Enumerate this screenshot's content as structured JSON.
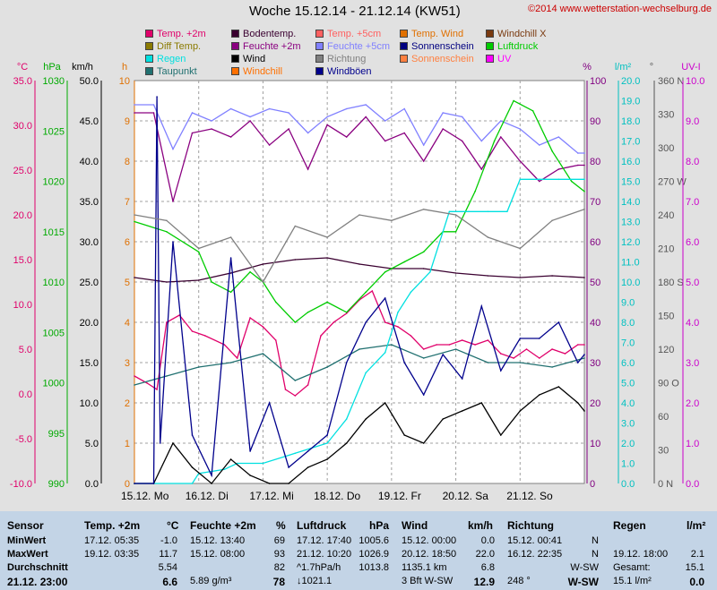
{
  "header": {
    "title": "Woche 15.12.14 - 21.12.14 (KW51)",
    "copyright": "©2014 www.wetterstation-wechselburg.de"
  },
  "legend": [
    {
      "label": "Temp. +2m",
      "color": "#e0006a"
    },
    {
      "label": "Bodentemp.",
      "color": "#3a0030"
    },
    {
      "label": "Temp. +5cm",
      "color": "#ff6060"
    },
    {
      "label": "Temp. Wind",
      "color": "#e07000"
    },
    {
      "label": "Windchill X",
      "color": "#7a3a10"
    },
    {
      "label": "Diff Temp.",
      "color": "#8a7a00"
    },
    {
      "label": "Feuchte +2m",
      "color": "#8a0080"
    },
    {
      "label": "Feuchte +5cm",
      "color": "#8080ff"
    },
    {
      "label": "Sonnenschein",
      "color": "#000080"
    },
    {
      "label": "Luftdruck",
      "color": "#00cc00"
    },
    {
      "label": "Regen",
      "color": "#00e0e0"
    },
    {
      "label": "Wind",
      "color": "#000000"
    },
    {
      "label": "Richtung",
      "color": "#808080"
    },
    {
      "label": "Sonnenschein",
      "color": "#ff8040"
    },
    {
      "label": "UV",
      "color": "#ff00ff"
    },
    {
      "label": "Taupunkt",
      "color": "#207070"
    },
    {
      "label": "Windchill",
      "color": "#ff7000"
    },
    {
      "label": "Windböen",
      "color": "#00008c"
    }
  ],
  "axes": {
    "temp": {
      "unit": "°C",
      "color": "#e0006a",
      "ticks": [
        "35.0",
        "30.0",
        "25.0",
        "20.0",
        "15.0",
        "10.0",
        "5.0",
        "0.0",
        "-5.0",
        "-10.0"
      ]
    },
    "pressure": {
      "unit": "hPa",
      "color": "#00aa00",
      "ticks": [
        "1030",
        "1025",
        "1020",
        "1015",
        "1010",
        "1005",
        "1000",
        "995",
        "990"
      ]
    },
    "wind": {
      "unit": "km/h",
      "color": "#000000",
      "ticks": [
        "50.0",
        "45.0",
        "40.0",
        "35.0",
        "30.0",
        "25.0",
        "20.0",
        "15.0",
        "10.0",
        "5.0",
        "0.0"
      ]
    },
    "sun": {
      "unit": "h",
      "color": "#e07000",
      "ticks": [
        "10",
        "9",
        "8",
        "7",
        "6",
        "5",
        "4",
        "3",
        "2",
        "1",
        "0"
      ]
    },
    "humidity": {
      "unit": "%",
      "color": "#800080",
      "ticks": [
        "100",
        "90",
        "80",
        "70",
        "60",
        "50",
        "40",
        "30",
        "20",
        "10",
        "0"
      ]
    },
    "rain": {
      "unit": "l/m²",
      "color": "#00c0c0",
      "ticks": [
        "20.0",
        "19.0",
        "18.0",
        "17.0",
        "16.0",
        "15.0",
        "14.0",
        "13.0",
        "12.0",
        "11.0",
        "10.0",
        "9.0",
        "8.0",
        "7.0",
        "6.0",
        "5.0",
        "4.0",
        "3.0",
        "2.0",
        "1.0",
        "0.0"
      ]
    },
    "direction": {
      "unit": "°",
      "color": "#555555",
      "ticks": [
        "360 N",
        "330",
        "300",
        "270 W",
        "240",
        "210",
        "180 S",
        "150",
        "120",
        "90 O",
        "60",
        "30",
        "0 N"
      ]
    },
    "uv": {
      "unit": "UV-I",
      "color": "#cc00cc",
      "ticks": [
        "10.0",
        "9.0",
        "8.0",
        "7.0",
        "6.0",
        "5.0",
        "4.0",
        "3.0",
        "2.0",
        "1.0",
        "0.0"
      ]
    },
    "days": [
      "15.12.  Mo",
      "16.12.  Di",
      "17.12.  Mi",
      "18.12.  Do",
      "19.12.  Fr",
      "20.12.  Sa",
      "21.12.  So"
    ]
  },
  "chart_data": {
    "type": "line",
    "title": "Woche 15.12.14 - 21.12.14 (KW51)",
    "x_unit": "days since 15.12.14 00:00",
    "xlim": [
      0,
      7
    ],
    "series": [
      {
        "name": "Temp. +2m",
        "axis": "temp",
        "color": "#e0006a",
        "x": [
          0,
          0.2,
          0.35,
          0.5,
          0.7,
          0.9,
          1.1,
          1.4,
          1.6,
          1.8,
          2.0,
          2.2,
          2.35,
          2.5,
          2.7,
          2.9,
          3.1,
          3.3,
          3.5,
          3.7,
          3.9,
          4.1,
          4.3,
          4.5,
          4.7,
          4.9,
          5.1,
          5.3,
          5.5,
          5.7,
          5.9,
          6.1,
          6.3,
          6.5,
          6.7,
          6.9,
          7.0
        ],
        "y": [
          2.0,
          1.2,
          0.5,
          8.0,
          8.8,
          7.0,
          6.5,
          5.5,
          4.0,
          8.5,
          7.5,
          6.0,
          0.5,
          -0.2,
          1.0,
          6.5,
          8.0,
          9.0,
          10.5,
          11.5,
          8.0,
          7.5,
          6.5,
          5.0,
          5.5,
          5.5,
          6.0,
          5.5,
          6.0,
          4.5,
          4.0,
          5.0,
          4.0,
          5.0,
          4.5,
          5.5,
          5.5
        ]
      },
      {
        "name": "Taupunkt",
        "axis": "temp",
        "color": "#207070",
        "x": [
          0,
          0.5,
          1.0,
          1.5,
          2.0,
          2.5,
          3.0,
          3.5,
          4.0,
          4.5,
          5.0,
          5.5,
          6.0,
          6.5,
          7.0
        ],
        "y": [
          1.0,
          2.0,
          3.0,
          3.5,
          4.5,
          1.5,
          3.0,
          5.0,
          5.5,
          4.0,
          5.0,
          3.5,
          3.5,
          3.0,
          4.0
        ]
      },
      {
        "name": "Bodentemp.",
        "axis": "temp",
        "color": "#3a0030",
        "x": [
          0,
          0.5,
          1.0,
          1.5,
          2.0,
          2.5,
          3.0,
          3.5,
          4.0,
          4.5,
          5.0,
          5.5,
          6.0,
          6.5,
          7.0
        ],
        "y": [
          13.0,
          12.5,
          12.7,
          13.5,
          14.5,
          15.0,
          15.2,
          14.5,
          14.0,
          14.0,
          13.5,
          13.2,
          13.0,
          13.2,
          13.0
        ]
      },
      {
        "name": "Feuchte +2m",
        "axis": "humidity",
        "color": "#8a0080",
        "x": [
          0,
          0.3,
          0.6,
          0.9,
          1.2,
          1.5,
          1.8,
          2.1,
          2.4,
          2.7,
          3.0,
          3.3,
          3.6,
          3.9,
          4.2,
          4.5,
          4.8,
          5.1,
          5.4,
          5.7,
          6.0,
          6.3,
          6.6,
          6.9,
          7.0
        ],
        "y": [
          92,
          92,
          70,
          87,
          88,
          86,
          90,
          84,
          88,
          78,
          89,
          86,
          91,
          85,
          87,
          80,
          88,
          85,
          78,
          86,
          80,
          75,
          78,
          79,
          79
        ]
      },
      {
        "name": "Feuchte +5cm",
        "axis": "humidity",
        "color": "#8080ff",
        "x": [
          0,
          0.3,
          0.6,
          0.9,
          1.2,
          1.5,
          1.8,
          2.1,
          2.4,
          2.7,
          3.0,
          3.3,
          3.6,
          3.9,
          4.2,
          4.5,
          4.8,
          5.1,
          5.4,
          5.7,
          6.0,
          6.3,
          6.6,
          6.9,
          7.0
        ],
        "y": [
          94,
          94,
          83,
          92,
          90,
          93,
          91,
          93,
          92,
          87,
          91,
          93,
          94,
          90,
          93,
          84,
          92,
          91,
          85,
          90,
          88,
          84,
          86,
          82,
          82
        ]
      },
      {
        "name": "Luftdruck",
        "axis": "pressure",
        "color": "#00cc00",
        "x": [
          0,
          0.5,
          1.0,
          1.2,
          1.5,
          1.8,
          2.0,
          2.2,
          2.5,
          2.7,
          3.0,
          3.3,
          3.6,
          3.9,
          4.2,
          4.5,
          4.8,
          5.0,
          5.3,
          5.6,
          5.9,
          6.2,
          6.5,
          6.8,
          7.0
        ],
        "y": [
          1016,
          1015,
          1013,
          1010,
          1009,
          1011,
          1010,
          1008,
          1006,
          1007,
          1008,
          1007,
          1009,
          1011,
          1012,
          1013,
          1015,
          1015,
          1019,
          1024,
          1028,
          1027,
          1023,
          1020,
          1019
        ]
      },
      {
        "name": "Regen",
        "axis": "rain",
        "color": "#00e0e0",
        "x": [
          0,
          0.9,
          1.0,
          1.4,
          1.6,
          2.0,
          2.5,
          3.0,
          3.3,
          3.6,
          3.9,
          4.1,
          4.3,
          4.6,
          4.9,
          5.2,
          5.5,
          5.8,
          6.0,
          6.3,
          6.6,
          7.0
        ],
        "y": [
          0,
          0,
          0.5,
          0.7,
          1.0,
          1.0,
          1.5,
          2.0,
          3.2,
          5.5,
          6.5,
          8.5,
          9.5,
          10.5,
          13.5,
          13.5,
          13.5,
          13.5,
          15.1,
          15.1,
          15.1,
          15.1
        ]
      },
      {
        "name": "Wind",
        "axis": "wind",
        "color": "#000000",
        "x": [
          0,
          0.3,
          0.6,
          0.9,
          1.2,
          1.5,
          1.8,
          2.1,
          2.4,
          2.7,
          3.0,
          3.3,
          3.6,
          3.9,
          4.2,
          4.5,
          4.8,
          5.1,
          5.4,
          5.7,
          6.0,
          6.3,
          6.6,
          6.9,
          7.0
        ],
        "y": [
          0,
          0,
          5,
          2,
          0,
          3,
          1,
          0,
          0,
          2,
          3,
          5,
          8,
          10,
          6,
          5,
          8,
          9,
          10,
          6,
          9,
          11,
          12,
          10,
          9
        ]
      },
      {
        "name": "Windböen",
        "axis": "wind",
        "color": "#00008c",
        "x": [
          0,
          0.3,
          0.35,
          0.4,
          0.6,
          0.9,
          1.2,
          1.5,
          1.8,
          2.1,
          2.4,
          2.7,
          3.0,
          3.3,
          3.6,
          3.9,
          4.2,
          4.5,
          4.8,
          5.1,
          5.4,
          5.7,
          6.0,
          6.3,
          6.6,
          6.9,
          7.0
        ],
        "y": [
          0,
          0,
          48,
          5,
          30,
          6,
          1,
          28,
          4,
          10,
          2,
          4,
          6,
          15,
          20,
          23,
          15,
          11,
          16,
          13,
          22,
          14,
          18,
          18,
          20,
          15,
          16
        ]
      },
      {
        "name": "Richtung",
        "axis": "direction",
        "color": "#808080",
        "x": [
          0,
          0.5,
          1.0,
          1.5,
          2.0,
          2.5,
          3.0,
          3.5,
          4.0,
          4.5,
          5.0,
          5.5,
          6.0,
          6.5,
          7.0
        ],
        "y": [
          240,
          235,
          210,
          220,
          180,
          230,
          220,
          240,
          235,
          245,
          240,
          220,
          210,
          235,
          245
        ]
      }
    ]
  },
  "table": {
    "headers": {
      "sensor": "Sensor",
      "temp": "Temp. +2m",
      "temp_unit": "°C",
      "hum": "Feuchte +2m",
      "hum_unit": "%",
      "press": "Luftdruck",
      "press_unit": "hPa",
      "wind": "Wind",
      "wind_unit": "km/h",
      "dir": "Richtung",
      "rain": "Regen",
      "rain_unit": "l/m²"
    },
    "rows": [
      {
        "label": "MinWert",
        "temp_t": "17.12.  05:35",
        "temp_v": "-1.0",
        "hum_t": "15.12.  13:40",
        "hum_v": "69",
        "press_t": "17.12.  17:40",
        "press_v": "1005.6",
        "wind_t": "15.12.  00:00",
        "wind_v": "0.0",
        "dir_t": "15.12.  00:41",
        "dir_v": "N",
        "rain_t": "",
        "rain_v": ""
      },
      {
        "label": "MaxWert",
        "temp_t": "19.12.  03:35",
        "temp_v": "11.7",
        "hum_t": "15.12.  08:00",
        "hum_v": "93",
        "press_t": "21.12.  10:20",
        "press_v": "1026.9",
        "wind_t": "20.12.  18:50",
        "wind_v": "22.0",
        "dir_t": "16.12.  22:35",
        "dir_v": "N",
        "rain_t": "19.12.  18:00",
        "rain_v": "2.1"
      },
      {
        "label": "Durchschnitt",
        "temp_t": "",
        "temp_v": "5.54",
        "hum_t": "",
        "hum_v": "82",
        "press_t": "^1.7hPa/h",
        "press_v": "1013.8",
        "wind_t": "1135.1 km",
        "wind_v": "6.8",
        "dir_t": "",
        "dir_v": "W-SW",
        "rain_t": "Gesamt:",
        "rain_v": "15.1"
      },
      {
        "label": "21.12. 23:00",
        "temp_t": "",
        "temp_v": "6.6",
        "hum_t": "5.89 g/m³",
        "hum_v": "78",
        "press_t": "↓1021.1",
        "press_v": "",
        "wind_t": "3 Bft W-SW",
        "wind_v": "12.9",
        "dir_t": "248 °",
        "dir_v": "W-SW",
        "rain_t": "15.1 l/m²",
        "rain_v": "0.0"
      }
    ]
  }
}
